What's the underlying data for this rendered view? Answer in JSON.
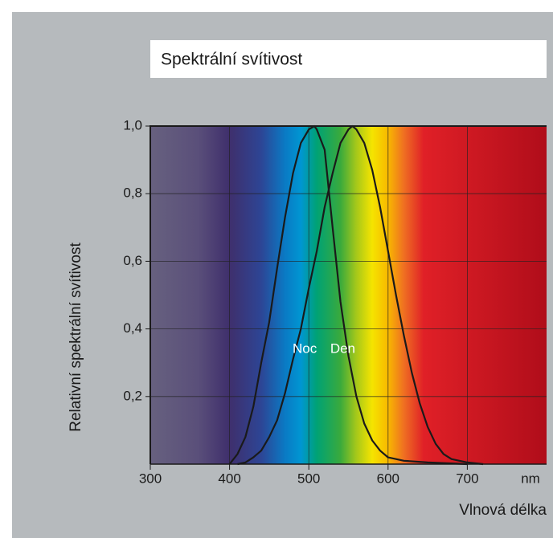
{
  "chart_data": {
    "type": "line",
    "title": "Spektrální svítivost",
    "x_label": "Vlnová délka",
    "y_label": "Relativní spektrální svítivost",
    "x_unit": "nm",
    "xlim": [
      300,
      800
    ],
    "ylim": [
      0,
      1
    ],
    "xticks": [
      300,
      400,
      500,
      600,
      700
    ],
    "yticks": [
      {
        "value": 0.2,
        "label": "0,2"
      },
      {
        "value": 0.4,
        "label": "0,4"
      },
      {
        "value": 0.6,
        "label": "0,6"
      },
      {
        "value": 0.8,
        "label": "0,8"
      },
      {
        "value": 1.0,
        "label": "1,0"
      }
    ],
    "grid": true,
    "series": [
      {
        "name": "Noc",
        "color": "#1a1a1a",
        "x": [
          400,
          410,
          420,
          430,
          440,
          450,
          460,
          470,
          480,
          490,
          500,
          507,
          510,
          520,
          530,
          540,
          550,
          560,
          570,
          580,
          590,
          600,
          620,
          650,
          700
        ],
        "values": [
          0,
          0.03,
          0.08,
          0.17,
          0.3,
          0.42,
          0.58,
          0.73,
          0.86,
          0.95,
          0.99,
          1.0,
          0.99,
          0.93,
          0.7,
          0.48,
          0.32,
          0.2,
          0.12,
          0.07,
          0.04,
          0.02,
          0.01,
          0.005,
          0
        ]
      },
      {
        "name": "Den",
        "color": "#1a1a1a",
        "x": [
          410,
          420,
          430,
          440,
          450,
          460,
          470,
          480,
          490,
          500,
          510,
          520,
          530,
          540,
          550,
          555,
          560,
          570,
          580,
          590,
          600,
          610,
          620,
          630,
          640,
          650,
          660,
          670,
          680,
          700,
          720
        ],
        "values": [
          0,
          0.005,
          0.02,
          0.04,
          0.08,
          0.13,
          0.21,
          0.31,
          0.4,
          0.52,
          0.63,
          0.76,
          0.86,
          0.95,
          0.99,
          1.0,
          0.99,
          0.95,
          0.87,
          0.76,
          0.63,
          0.5,
          0.38,
          0.27,
          0.18,
          0.11,
          0.06,
          0.03,
          0.015,
          0.005,
          0
        ]
      }
    ]
  }
}
